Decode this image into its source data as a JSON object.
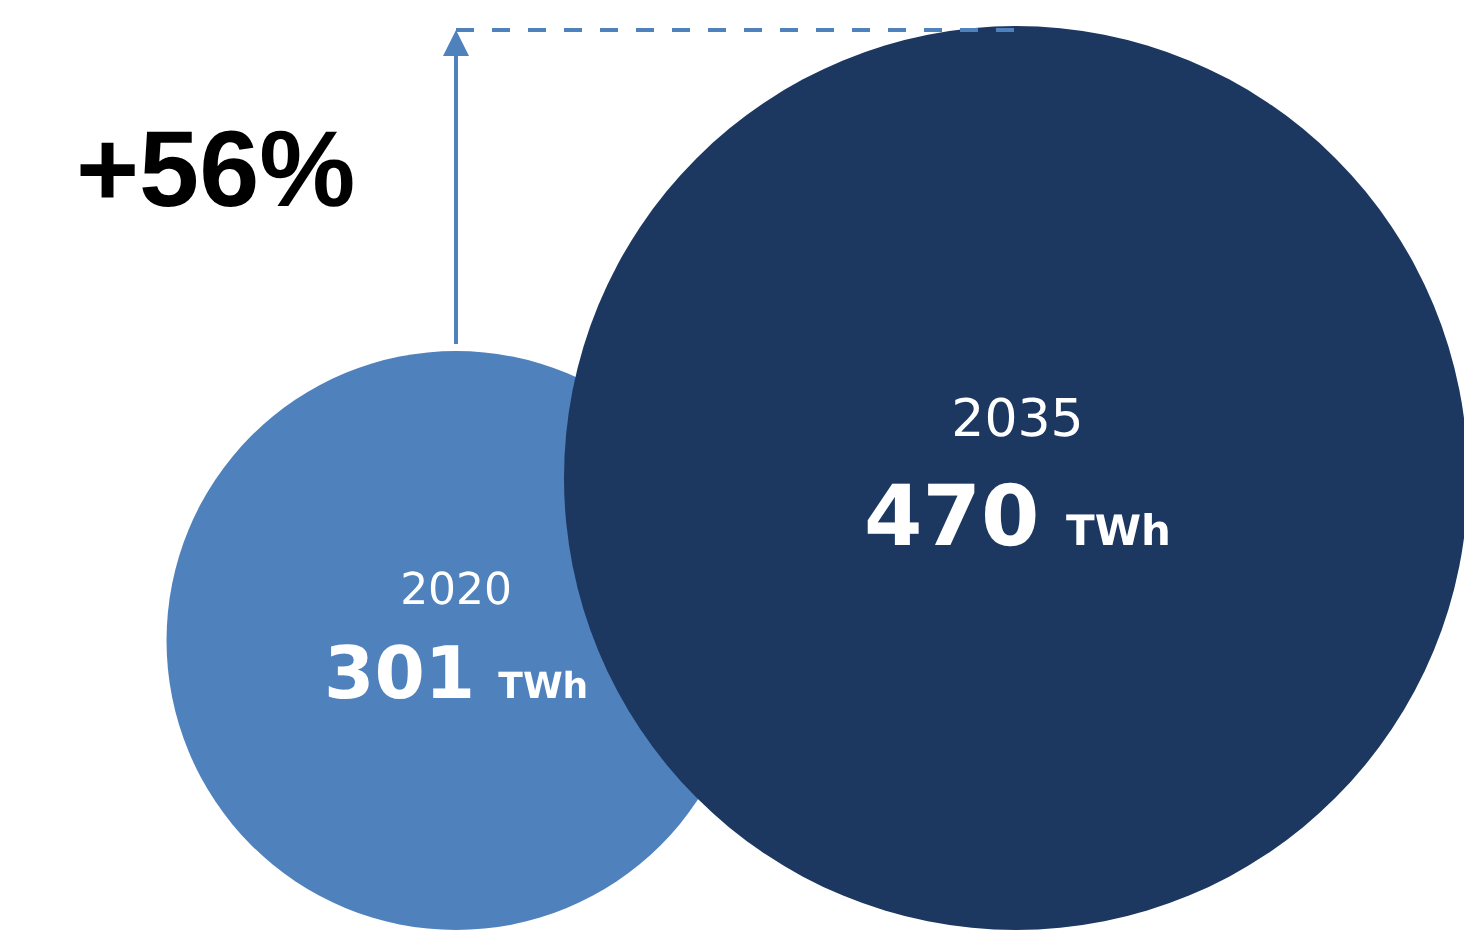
{
  "chart_data": {
    "type": "other",
    "categories": [
      "2020",
      "2035"
    ],
    "values": [
      301,
      470
    ],
    "colors": [
      "#4f81bd",
      "#1c3760"
    ],
    "value_labels": [
      "301 TWh",
      "470 TWh"
    ],
    "annotations": [
      "+56%"
    ]
  }
}
